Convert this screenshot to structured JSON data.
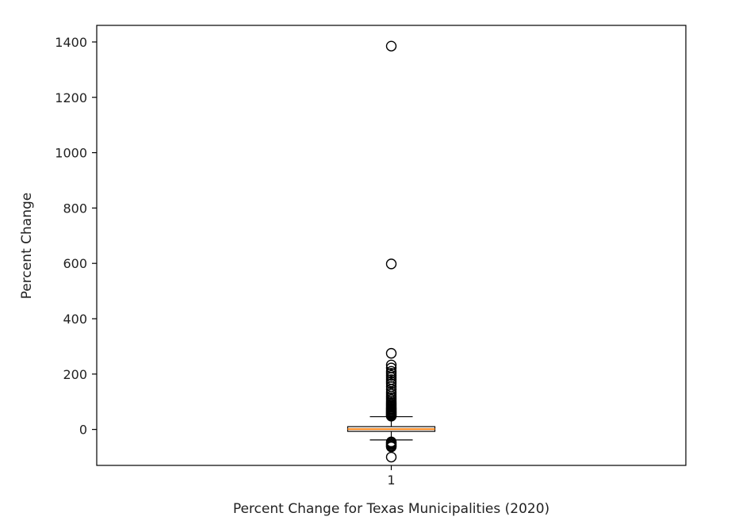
{
  "chart_data": {
    "type": "box",
    "title": "",
    "xlabel": "Percent Change for Texas Municipalities (2020)",
    "ylabel": "Percent Change",
    "x_tick_labels": [
      "1"
    ],
    "y_ticks": [
      0,
      200,
      400,
      600,
      800,
      1000,
      1200,
      1400
    ],
    "ylim": [
      -130,
      1460
    ],
    "grid": false,
    "colors": {
      "median": "#ff7f0e",
      "box": "#000000",
      "flier": "#000000",
      "background": "#ffffff"
    },
    "boxes": [
      {
        "category": "1",
        "whisker_low": -38,
        "q1": -7,
        "median": 1,
        "q3": 10,
        "whisker_high": 46,
        "fliers_high": [
          48,
          50,
          52,
          55,
          58,
          60,
          63,
          66,
          70,
          73,
          76,
          80,
          84,
          88,
          92,
          97,
          102,
          108,
          114,
          120,
          128,
          135,
          145,
          155,
          165,
          172,
          180,
          188,
          195,
          203,
          210,
          222,
          233,
          275,
          598,
          1385
        ],
        "fliers_low": [
          -45,
          -48,
          -52,
          -56,
          -60,
          -63,
          -100
        ]
      }
    ]
  }
}
